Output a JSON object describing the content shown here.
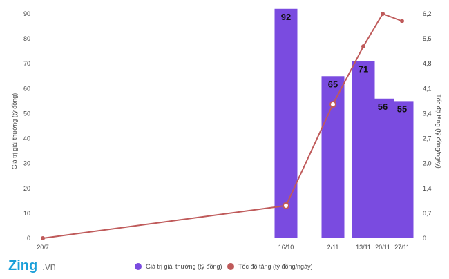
{
  "chart_data": {
    "type": "bar",
    "categories": [
      "20/7",
      "16/10",
      "2/11",
      "13/11",
      "20/11",
      "27/11"
    ],
    "x_day_index": [
      0,
      88,
      105,
      116,
      123,
      130
    ],
    "series": [
      {
        "name": "Giá trị giải thưởng (tỷ đồng)",
        "type": "bar",
        "axis": "left",
        "color": "#7a4be0",
        "values": [
          null,
          92,
          65,
          71,
          56,
          55
        ],
        "labels": [
          "",
          "92",
          "65",
          "71",
          "56",
          "55"
        ]
      },
      {
        "name": "Tốc độ tăng (tỷ đồng/ngày)",
        "type": "line",
        "axis": "right",
        "color": "#bf5a5a",
        "values": [
          0,
          0.9,
          3.7,
          5.3,
          6.2,
          6.0
        ]
      }
    ],
    "ylabel": "Giá trị giải thưởng (tỷ đồng)",
    "ylabel_right": "Tốc độ tăng (tỷ đồng/ngày)",
    "ylim": [
      0,
      90
    ],
    "ylim_right": [
      0,
      6.2
    ],
    "yticks": [
      "0",
      "10",
      "20",
      "30",
      "40",
      "50",
      "60",
      "70",
      "80",
      "90"
    ],
    "yticks_right": [
      "0",
      "0,7",
      "1,4",
      "2,0",
      "2,7",
      "3,4",
      "4,1",
      "4,8",
      "5,5",
      "6,2"
    ],
    "grid": false,
    "legend_position": "bottom"
  },
  "logo": {
    "brand": "Zing",
    "suffix": ".vn"
  }
}
